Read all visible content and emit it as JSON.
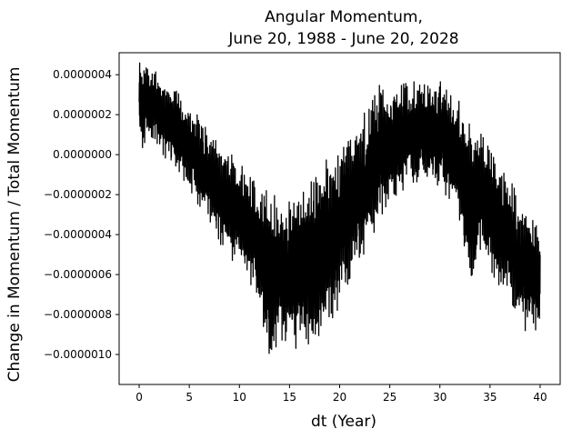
{
  "chart_data": {
    "type": "line",
    "title": "Angular Momentum,",
    "subtitle": "June 20, 1988 - June 20, 2028",
    "xlabel": "dt (Year)",
    "ylabel": "Change in Momentum / Total Momentum",
    "xlim": [
      -1.999,
      41.999
    ],
    "ylim": [
      -1.15e-06,
      5.1e-07
    ],
    "xticks": [
      0,
      5,
      10,
      15,
      20,
      25,
      30,
      35,
      40
    ],
    "xtick_labels": [
      "0",
      "5",
      "10",
      "15",
      "20",
      "25",
      "30",
      "35",
      "40"
    ],
    "yticks": [
      -1e-06,
      -8e-07,
      -6e-07,
      -4e-07,
      -2e-07,
      0,
      2e-07,
      4e-07
    ],
    "ytick_labels": [
      "−0.0000010",
      "−0.0000008",
      "−0.0000006",
      "−0.0000004",
      "−0.0000002",
      "0.0000000",
      "0.0000002",
      "0.0000004"
    ],
    "grid": false,
    "series": [
      {
        "color": "#000000",
        "x": [
          0,
          1,
          2,
          3,
          4,
          5,
          6,
          7,
          8,
          9,
          10,
          11,
          12,
          13,
          14,
          15,
          16,
          17,
          18,
          19,
          20,
          21,
          22,
          23,
          24,
          25,
          26,
          27,
          28,
          29,
          30,
          31,
          32,
          33,
          34,
          35,
          36,
          37,
          38,
          39,
          40
        ],
        "y_upper": [
          4.9e-07,
          4.4e-07,
          4e-07,
          3.6e-07,
          3e-07,
          2.4e-07,
          1.9e-07,
          1.3e-07,
          6e-08,
          1e-08,
          -4e-08,
          -1.1e-07,
          -1.6e-07,
          -1.9e-07,
          -2.2e-07,
          -2.1e-07,
          -1.7e-07,
          -1.3e-07,
          -6e-08,
          -1e-08,
          6e-08,
          1.2e-07,
          1.8e-07,
          2.4e-07,
          3.5e-07,
          3.4e-07,
          3.5e-07,
          3.6e-07,
          3.7e-07,
          3.7e-07,
          3.8e-07,
          3.3e-07,
          2.6e-07,
          1.7e-07,
          1.1e-07,
          3e-08,
          -7e-08,
          -1.3e-07,
          -2.1e-07,
          -2.8e-07,
          -3.8e-07
        ],
        "y_lower": [
          -1e-08,
          1e-07,
          2e-08,
          -4e-08,
          -1e-07,
          -1.7e-07,
          -2.6e-07,
          -3.4e-07,
          -4.4e-07,
          -5.1e-07,
          -5.8e-07,
          -6.4e-07,
          -7.4e-07,
          -1.04e-06,
          -9.2e-07,
          -9.5e-07,
          -9.8e-07,
          -9.6e-07,
          -9.2e-07,
          -8.4e-07,
          -7.6e-07,
          -6.2e-07,
          -5.3e-07,
          -4.5e-07,
          -3.7e-07,
          -2.6e-07,
          -1.9e-07,
          -1.5e-07,
          -1.3e-07,
          -1.5e-07,
          -1.8e-07,
          -2.4e-07,
          -3.3e-07,
          -7.2e-07,
          -4.9e-07,
          -5.8e-07,
          -6.6e-07,
          -7.4e-07,
          -8.7e-07,
          -8.9e-07,
          -9.1e-07
        ]
      }
    ]
  }
}
